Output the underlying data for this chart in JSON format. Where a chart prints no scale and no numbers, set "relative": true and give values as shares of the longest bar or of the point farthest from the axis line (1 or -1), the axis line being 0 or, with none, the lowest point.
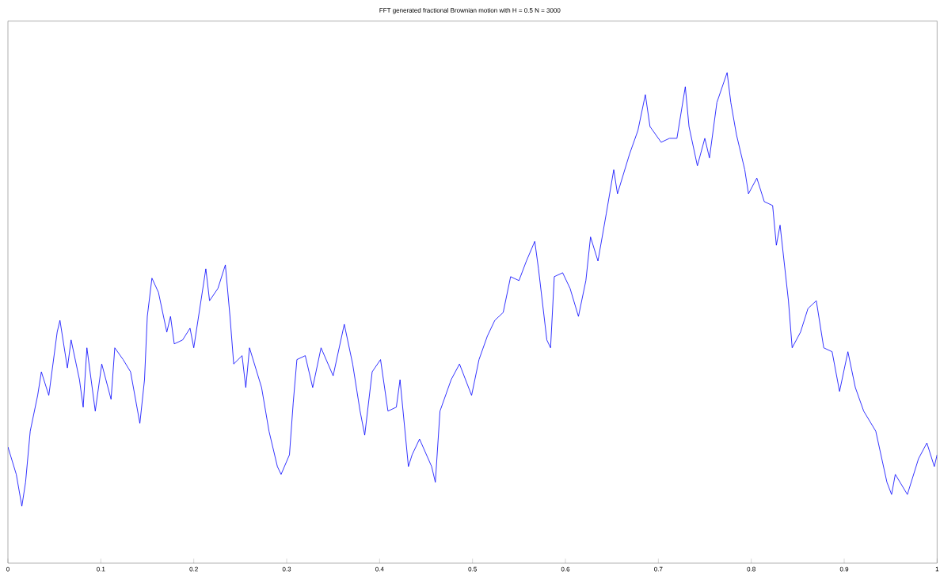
{
  "chart_data": {
    "type": "line",
    "title": "FFT generated fractional Brownian motion with H = 0.5 N = 3000",
    "relative": true,
    "xlim": [
      0,
      1
    ],
    "xticks": [
      0,
      0.1,
      0.2,
      0.3,
      0.4,
      0.5,
      0.6,
      0.7,
      0.8,
      0.9,
      1
    ],
    "x": [
      0,
      0.009,
      0.015,
      0.019,
      0.024,
      0.032,
      0.036,
      0.044,
      0.053,
      0.056,
      0.064,
      0.068,
      0.077,
      0.081,
      0.085,
      0.094,
      0.101,
      0.111,
      0.115,
      0.124,
      0.132,
      0.142,
      0.147,
      0.15,
      0.155,
      0.162,
      0.171,
      0.175,
      0.179,
      0.188,
      0.196,
      0.2,
      0.213,
      0.217,
      0.226,
      0.234,
      0.239,
      0.243,
      0.252,
      0.256,
      0.26,
      0.273,
      0.281,
      0.29,
      0.294,
      0.303,
      0.307,
      0.311,
      0.32,
      0.328,
      0.337,
      0.35,
      0.362,
      0.371,
      0.379,
      0.384,
      0.392,
      0.401,
      0.409,
      0.418,
      0.422,
      0.431,
      0.435,
      0.443,
      0.456,
      0.46,
      0.465,
      0.477,
      0.486,
      0.499,
      0.507,
      0.516,
      0.524,
      0.533,
      0.541,
      0.55,
      0.558,
      0.567,
      0.571,
      0.58,
      0.584,
      0.588,
      0.597,
      0.605,
      0.614,
      0.622,
      0.627,
      0.635,
      0.644,
      0.652,
      0.656,
      0.669,
      0.678,
      0.686,
      0.691,
      0.703,
      0.712,
      0.72,
      0.729,
      0.733,
      0.742,
      0.75,
      0.755,
      0.763,
      0.774,
      0.778,
      0.784,
      0.793,
      0.797,
      0.806,
      0.814,
      0.823,
      0.827,
      0.831,
      0.84,
      0.844,
      0.853,
      0.861,
      0.87,
      0.878,
      0.887,
      0.895,
      0.904,
      0.912,
      0.921,
      0.934,
      0.946,
      0.951,
      0.955,
      0.968,
      0.98,
      0.989,
      0.997,
      1
    ],
    "series": [
      {
        "color": "#0000ff",
        "values": [
          0.237,
          0.181,
          0.116,
          0.165,
          0.269,
          0.342,
          0.39,
          0.342,
          0.471,
          0.495,
          0.398,
          0.455,
          0.374,
          0.318,
          0.439,
          0.31,
          0.406,
          0.334,
          0.439,
          0.415,
          0.39,
          0.285,
          0.374,
          0.503,
          0.581,
          0.552,
          0.471,
          0.503,
          0.447,
          0.455,
          0.479,
          0.439,
          0.6,
          0.535,
          0.56,
          0.608,
          0.503,
          0.406,
          0.423,
          0.358,
          0.439,
          0.358,
          0.269,
          0.197,
          0.181,
          0.221,
          0.326,
          0.415,
          0.423,
          0.358,
          0.439,
          0.382,
          0.487,
          0.406,
          0.31,
          0.261,
          0.39,
          0.415,
          0.31,
          0.318,
          0.374,
          0.197,
          0.221,
          0.253,
          0.197,
          0.165,
          0.31,
          0.374,
          0.406,
          0.342,
          0.415,
          0.463,
          0.495,
          0.511,
          0.584,
          0.576,
          0.616,
          0.656,
          0.6,
          0.455,
          0.439,
          0.584,
          0.592,
          0.56,
          0.503,
          0.576,
          0.665,
          0.616,
          0.713,
          0.802,
          0.753,
          0.834,
          0.882,
          0.955,
          0.89,
          0.858,
          0.866,
          0.866,
          0.971,
          0.89,
          0.81,
          0.866,
          0.826,
          0.939,
          1,
          0.939,
          0.874,
          0.802,
          0.753,
          0.785,
          0.737,
          0.729,
          0.648,
          0.689,
          0.535,
          0.439,
          0.471,
          0.519,
          0.535,
          0.439,
          0.431,
          0.35,
          0.431,
          0.358,
          0.31,
          0.269,
          0.165,
          0.14,
          0.181,
          0.14,
          0.213,
          0.245,
          0.197,
          0.221
        ]
      }
    ]
  }
}
